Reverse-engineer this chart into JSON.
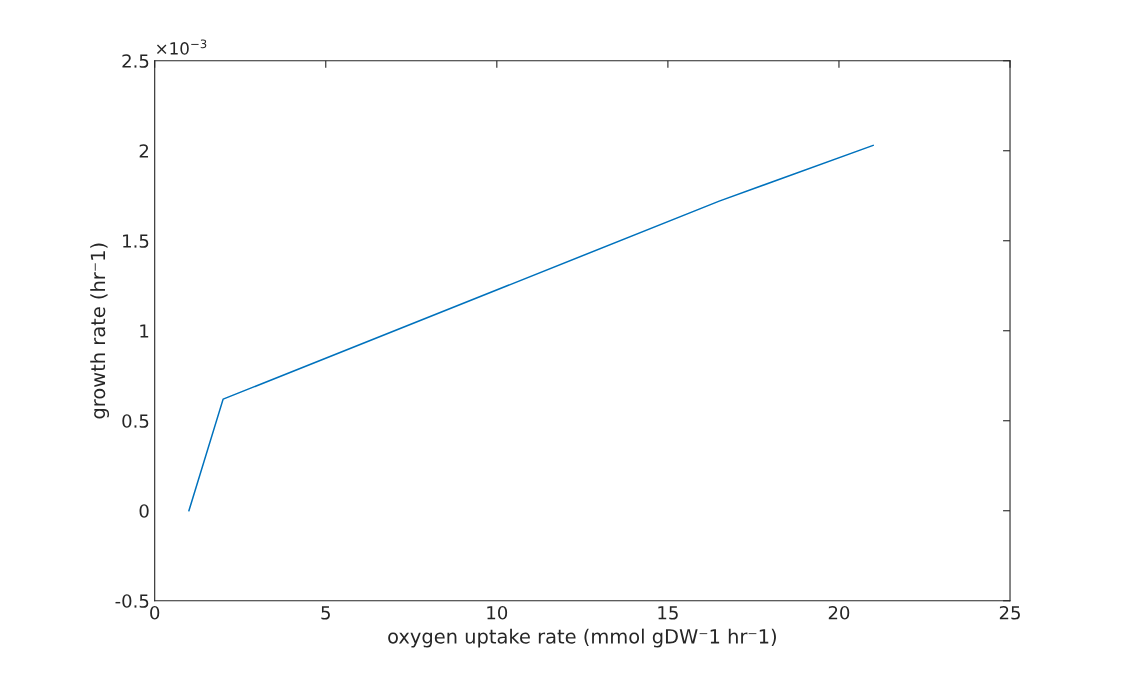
{
  "chart_data": {
    "type": "line",
    "xlabel": "oxygen uptake rate (mmol gDW⁻1 hr⁻1)",
    "ylabel": "growth rate (hr⁻1)",
    "x": [
      1,
      2,
      16.5,
      21
    ],
    "series": [
      {
        "color": "#0072bd",
        "values": [
          0,
          0.62,
          1.72,
          2.03
        ]
      }
    ],
    "xlim": [
      0,
      25
    ],
    "xticks": [
      0,
      5,
      10,
      15,
      20,
      25
    ],
    "ylim": [
      -0.5,
      2.5
    ],
    "yticks": [
      {
        "value": -0.5,
        "label": "-0.5"
      },
      0,
      0.5,
      1,
      1.5,
      2,
      2.5
    ],
    "annotations": [
      "×10$^{−3}$"
    ],
    "grid": false,
    "legend": false,
    "marker": "none",
    "line_style": "solid"
  }
}
